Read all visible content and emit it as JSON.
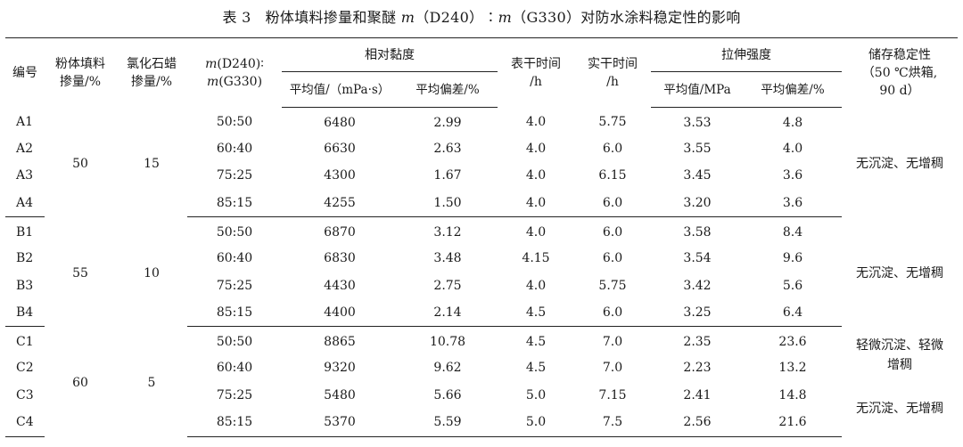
{
  "caption": {
    "label": "表 3",
    "title_pre": "粉体填料掺量和聚醚 ",
    "m1": "m",
    "d240": "（D240）∶",
    "m2": "m",
    "title_post": "（G330）对防水涂料稳定性的影响"
  },
  "headers": {
    "code": "编号",
    "powder": [
      "粉体填料",
      "掺量/%"
    ],
    "paraffin": [
      "氯化石蜡",
      "掺量/%"
    ],
    "ratio": [
      "(D240)∶",
      "(G330)"
    ],
    "ratio_m": "m",
    "viscosity": "相对黏度",
    "visc_avg": "平均值/（mPa·s）",
    "visc_dev": "平均偏差/%",
    "surface_dry": [
      "表干时间",
      "/h"
    ],
    "hard_dry": [
      "实干时间",
      "/h"
    ],
    "tensile": "拉伸强度",
    "tens_avg": "平均值/MPa",
    "tens_dev": "平均偏差/%",
    "storage": [
      "储存稳定性",
      "（50 ℃烘箱,",
      "90 d）"
    ]
  },
  "groups": [
    {
      "powder": "50",
      "paraffin": "15",
      "rows": [
        {
          "code": "A1",
          "ratio": "50:50",
          "visc_avg": "6480",
          "visc_dev": "2.99",
          "surface": "4.0",
          "hard": "5.75",
          "tens_avg": "3.53",
          "tens_dev": "4.8"
        },
        {
          "code": "A2",
          "ratio": "60:40",
          "visc_avg": "6630",
          "visc_dev": "2.63",
          "surface": "4.0",
          "hard": "6.0",
          "tens_avg": "3.55",
          "tens_dev": "4.0"
        },
        {
          "code": "A3",
          "ratio": "75:25",
          "visc_avg": "4300",
          "visc_dev": "1.67",
          "surface": "4.0",
          "hard": "6.15",
          "tens_avg": "3.45",
          "tens_dev": "3.6"
        },
        {
          "code": "A4",
          "ratio": "85:15",
          "visc_avg": "4255",
          "visc_dev": "1.50",
          "surface": "4.0",
          "hard": "6.0",
          "tens_avg": "3.20",
          "tens_dev": "3.6"
        }
      ],
      "storage": "无沉淀、无增稠"
    },
    {
      "powder": "55",
      "paraffin": "10",
      "rows": [
        {
          "code": "B1",
          "ratio": "50:50",
          "visc_avg": "6870",
          "visc_dev": "3.12",
          "surface": "4.0",
          "hard": "6.0",
          "tens_avg": "3.58",
          "tens_dev": "8.4"
        },
        {
          "code": "B2",
          "ratio": "60:40",
          "visc_avg": "6830",
          "visc_dev": "3.48",
          "surface": "4.15",
          "hard": "6.0",
          "tens_avg": "3.54",
          "tens_dev": "9.6"
        },
        {
          "code": "B3",
          "ratio": "75:25",
          "visc_avg": "4430",
          "visc_dev": "2.75",
          "surface": "4.0",
          "hard": "5.75",
          "tens_avg": "3.42",
          "tens_dev": "5.6"
        },
        {
          "code": "B4",
          "ratio": "85:15",
          "visc_avg": "4400",
          "visc_dev": "2.14",
          "surface": "4.5",
          "hard": "6.0",
          "tens_avg": "3.25",
          "tens_dev": "6.4"
        }
      ],
      "storage": "无沉淀、无增稠"
    },
    {
      "powder": "60",
      "paraffin": "5",
      "rows": [
        {
          "code": "C1",
          "ratio": "50:50",
          "visc_avg": "8865",
          "visc_dev": "10.78",
          "surface": "4.5",
          "hard": "7.0",
          "tens_avg": "2.35",
          "tens_dev": "23.6"
        },
        {
          "code": "C2",
          "ratio": "60:40",
          "visc_avg": "9320",
          "visc_dev": "9.62",
          "surface": "4.5",
          "hard": "7.0",
          "tens_avg": "2.23",
          "tens_dev": "13.2"
        },
        {
          "code": "C3",
          "ratio": "75:25",
          "visc_avg": "5480",
          "visc_dev": "5.66",
          "surface": "5.0",
          "hard": "7.15",
          "tens_avg": "2.41",
          "tens_dev": "14.8"
        },
        {
          "code": "C4",
          "ratio": "85:15",
          "visc_avg": "5370",
          "visc_dev": "5.59",
          "surface": "5.0",
          "hard": "7.5",
          "tens_avg": "2.56",
          "tens_dev": "21.6"
        }
      ],
      "storage_a": [
        "轻微沉淀、轻微",
        "增稠"
      ],
      "storage_b": "无沉淀、无增稠"
    }
  ]
}
